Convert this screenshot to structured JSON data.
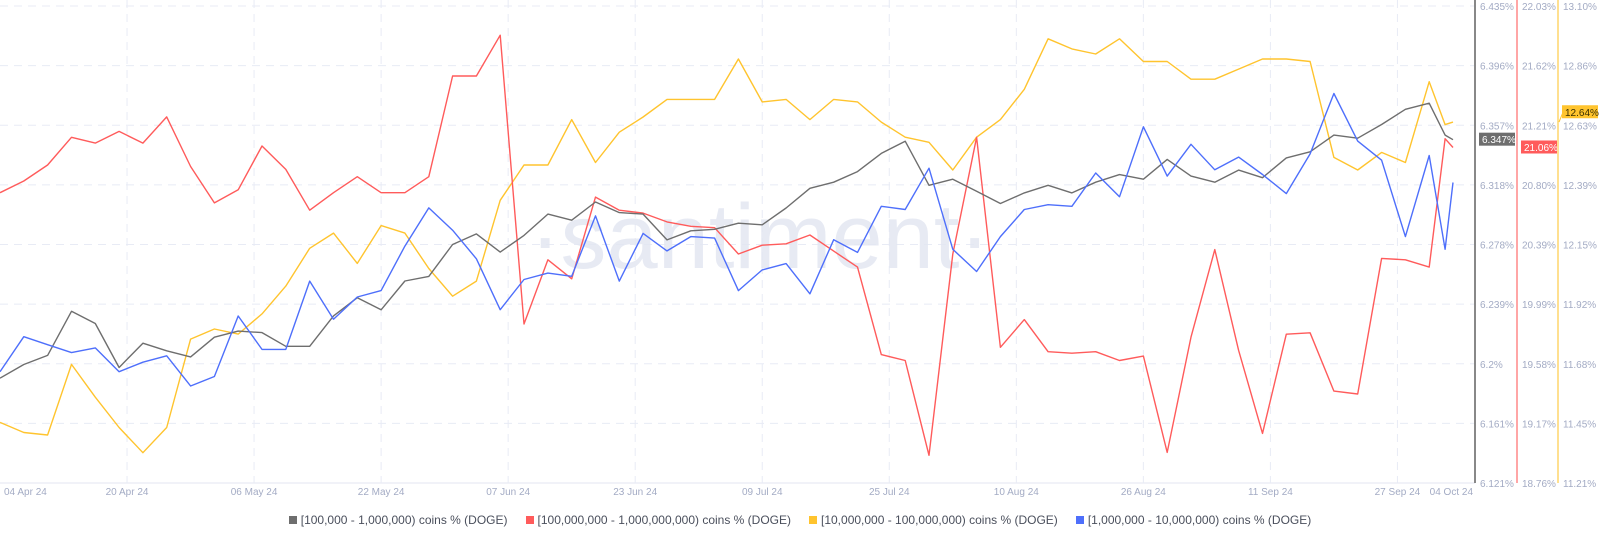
{
  "chart_data": {
    "type": "line",
    "title": "",
    "watermark": "·santiment·",
    "x": [
      "2024-04-04",
      "2024-04-07",
      "2024-04-10",
      "2024-04-13",
      "2024-04-16",
      "2024-04-19",
      "2024-04-22",
      "2024-04-25",
      "2024-04-28",
      "2024-05-01",
      "2024-05-04",
      "2024-05-07",
      "2024-05-10",
      "2024-05-13",
      "2024-05-16",
      "2024-05-19",
      "2024-05-22",
      "2024-05-25",
      "2024-05-28",
      "2024-05-31",
      "2024-06-03",
      "2024-06-06",
      "2024-06-09",
      "2024-06-12",
      "2024-06-15",
      "2024-06-18",
      "2024-06-21",
      "2024-06-24",
      "2024-06-27",
      "2024-06-30",
      "2024-07-03",
      "2024-07-06",
      "2024-07-09",
      "2024-07-12",
      "2024-07-15",
      "2024-07-18",
      "2024-07-21",
      "2024-07-24",
      "2024-07-27",
      "2024-07-30",
      "2024-08-02",
      "2024-08-05",
      "2024-08-08",
      "2024-08-11",
      "2024-08-14",
      "2024-08-17",
      "2024-08-20",
      "2024-08-23",
      "2024-08-26",
      "2024-08-29",
      "2024-09-01",
      "2024-09-04",
      "2024-09-07",
      "2024-09-10",
      "2024-09-13",
      "2024-09-16",
      "2024-09-19",
      "2024-09-22",
      "2024-09-25",
      "2024-09-28",
      "2024-10-01",
      "2024-10-03",
      "2024-10-04"
    ],
    "x_ticks": [
      "04 Apr 24",
      "20 Apr 24",
      "06 May 24",
      "22 May 24",
      "07 Jun 24",
      "23 Jun 24",
      "09 Jul 24",
      "25 Jul 24",
      "10 Aug 24",
      "26 Aug 24",
      "11 Sep 24",
      "27 Sep 24",
      "04 Oct 24"
    ],
    "x_tick_dates": [
      "2024-04-04",
      "2024-04-20",
      "2024-05-06",
      "2024-05-22",
      "2024-06-07",
      "2024-06-23",
      "2024-07-09",
      "2024-07-25",
      "2024-08-10",
      "2024-08-26",
      "2024-09-11",
      "2024-09-27",
      "2024-10-04"
    ],
    "grid": true,
    "legend_position": "bottom",
    "axes": [
      {
        "id": "gray",
        "color": "#888888",
        "ylim": [
          6.121,
          6.435
        ],
        "ticks": [
          "6.435%",
          "6.396%",
          "6.357%",
          "6.318%",
          "6.278%",
          "6.239%",
          "6.2%",
          "6.161%",
          "6.121%"
        ]
      },
      {
        "id": "red",
        "color": "#ff6b6b",
        "ylim": [
          18.76,
          22.03
        ],
        "ticks": [
          "22.03%",
          "21.62%",
          "21.21%",
          "20.80%",
          "20.39%",
          "19.99%",
          "19.58%",
          "19.17%",
          "18.76%"
        ]
      },
      {
        "id": "yellow",
        "color": "#ffcb47",
        "ylim": [
          11.21,
          13.1
        ],
        "ticks": [
          "13.10%",
          "12.86%",
          "12.63%",
          "12.39%",
          "12.15%",
          "11.92%",
          "11.68%",
          "11.45%",
          "11.21%"
        ]
      },
      {
        "id": "blue",
        "hidden": true,
        "ylim": [
          5.6,
          5.9
        ]
      }
    ],
    "series": [
      {
        "name": "[100,000  - 1,000,000) coins % (DOGE)",
        "axis": "gray",
        "color": "#6e6e6e",
        "last_label": "6.347%",
        "values": [
          6.19,
          6.199,
          6.205,
          6.234,
          6.226,
          6.197,
          6.213,
          6.208,
          6.204,
          6.217,
          6.221,
          6.22,
          6.211,
          6.211,
          6.231,
          6.243,
          6.235,
          6.254,
          6.257,
          6.278,
          6.285,
          6.273,
          6.284,
          6.298,
          6.294,
          6.306,
          6.299,
          6.298,
          6.281,
          6.287,
          6.288,
          6.292,
          6.291,
          6.302,
          6.315,
          6.319,
          6.326,
          6.338,
          6.346,
          6.317,
          6.321,
          6.313,
          6.305,
          6.312,
          6.317,
          6.312,
          6.319,
          6.324,
          6.321,
          6.334,
          6.323,
          6.319,
          6.327,
          6.322,
          6.335,
          6.339,
          6.35,
          6.348,
          6.357,
          6.367,
          6.371,
          6.35,
          6.347
        ]
      },
      {
        "name": "[100,000,000 - 1,000,000,000) coins % (DOGE)",
        "axis": "red",
        "color": "#ff5b5b",
        "last_label": "21.06%",
        "values": [
          20.75,
          20.83,
          20.94,
          21.13,
          21.09,
          21.17,
          21.09,
          21.27,
          20.93,
          20.68,
          20.77,
          21.07,
          20.91,
          20.63,
          20.75,
          20.86,
          20.75,
          20.75,
          20.86,
          21.55,
          21.55,
          21.83,
          19.85,
          20.29,
          20.16,
          20.72,
          20.63,
          20.61,
          20.55,
          20.52,
          20.51,
          20.33,
          20.39,
          20.4,
          20.46,
          20.35,
          20.24,
          19.64,
          19.6,
          18.95,
          20.33,
          21.13,
          19.69,
          19.88,
          19.66,
          19.65,
          19.66,
          19.6,
          19.63,
          18.97,
          19.76,
          20.36,
          19.67,
          19.1,
          19.78,
          19.79,
          19.39,
          19.37,
          20.3,
          20.29,
          20.24,
          21.12,
          21.06
        ]
      },
      {
        "name": "[10,000,000 - 100,000,000) coins % (DOGE)",
        "axis": "yellow",
        "color": "#ffc42e",
        "last_label": "12.64%",
        "values": [
          11.45,
          11.41,
          11.4,
          11.68,
          11.55,
          11.43,
          11.33,
          11.43,
          11.78,
          11.82,
          11.8,
          11.88,
          11.99,
          12.14,
          12.2,
          12.08,
          12.23,
          12.2,
          12.06,
          11.95,
          12.01,
          12.33,
          12.47,
          12.47,
          12.65,
          12.48,
          12.6,
          12.66,
          12.73,
          12.73,
          12.73,
          12.89,
          12.72,
          12.73,
          12.65,
          12.73,
          12.72,
          12.64,
          12.58,
          12.56,
          12.45,
          12.58,
          12.65,
          12.77,
          12.97,
          12.93,
          12.91,
          12.97,
          12.88,
          12.88,
          12.81,
          12.81,
          12.85,
          12.89,
          12.89,
          12.88,
          12.5,
          12.45,
          12.52,
          12.48,
          12.8,
          12.63,
          12.64
        ]
      },
      {
        "name": "[1,000,000 - 10,000,000) coins % (DOGE)",
        "axis": "blue",
        "color": "#4e6ffb",
        "values": [
          5.67,
          5.692,
          5.687,
          5.682,
          5.685,
          5.67,
          5.676,
          5.68,
          5.661,
          5.667,
          5.705,
          5.684,
          5.684,
          5.727,
          5.703,
          5.717,
          5.721,
          5.749,
          5.773,
          5.759,
          5.741,
          5.709,
          5.728,
          5.732,
          5.73,
          5.768,
          5.727,
          5.757,
          5.746,
          5.755,
          5.754,
          5.721,
          5.734,
          5.738,
          5.719,
          5.753,
          5.745,
          5.774,
          5.772,
          5.798,
          5.747,
          5.733,
          5.755,
          5.772,
          5.775,
          5.774,
          5.795,
          5.78,
          5.824,
          5.793,
          5.813,
          5.797,
          5.805,
          5.794,
          5.782,
          5.807,
          5.845,
          5.815,
          5.803,
          5.755,
          5.806,
          5.747,
          5.789
        ]
      }
    ]
  },
  "legend": {
    "items": [
      {
        "label": "[100,000  - 1,000,000) coins % (DOGE)",
        "color": "#6e6e6e"
      },
      {
        "label": "[100,000,000 - 1,000,000,000) coins % (DOGE)",
        "color": "#ff5b5b"
      },
      {
        "label": "[10,000,000 - 100,000,000) coins % (DOGE)",
        "color": "#ffc42e"
      },
      {
        "label": "[1,000,000 - 10,000,000) coins % (DOGE)",
        "color": "#4e6ffb"
      }
    ]
  }
}
